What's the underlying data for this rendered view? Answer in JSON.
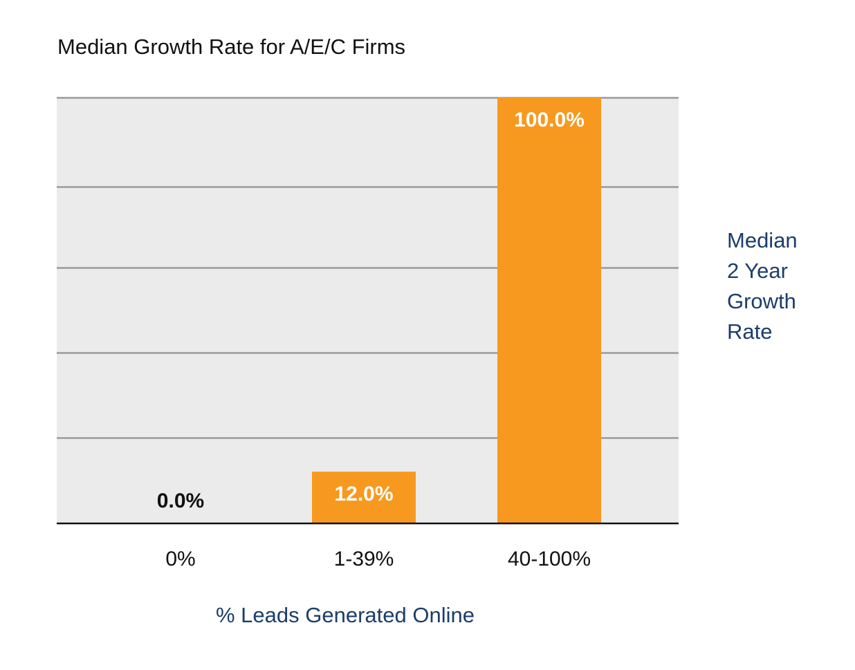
{
  "chart_data": {
    "type": "bar",
    "title": "Median Growth Rate for A/E/C Firms",
    "xlabel": "% Leads Generated Online",
    "ylabel": "Median 2 Year Growth Rate",
    "ylabel_lines": [
      "Median",
      "2 Year",
      "Growth",
      "Rate"
    ],
    "categories": [
      "0%",
      "1-39%",
      "40-100%"
    ],
    "values": [
      0.0,
      12.0,
      100.0
    ],
    "data_labels": [
      "0.0%",
      "12.0%",
      "100.0%"
    ],
    "ylim": [
      0,
      100
    ],
    "grid": true,
    "legend": "none",
    "colors": {
      "bar": "#f7991f",
      "plot_background": "#ebebeb",
      "gridline": "#9a9a9a",
      "axis_line": "#111111",
      "axis_title": "#1b3d6a",
      "label_inside": "#ffffff",
      "label_outside": "#111111"
    }
  }
}
